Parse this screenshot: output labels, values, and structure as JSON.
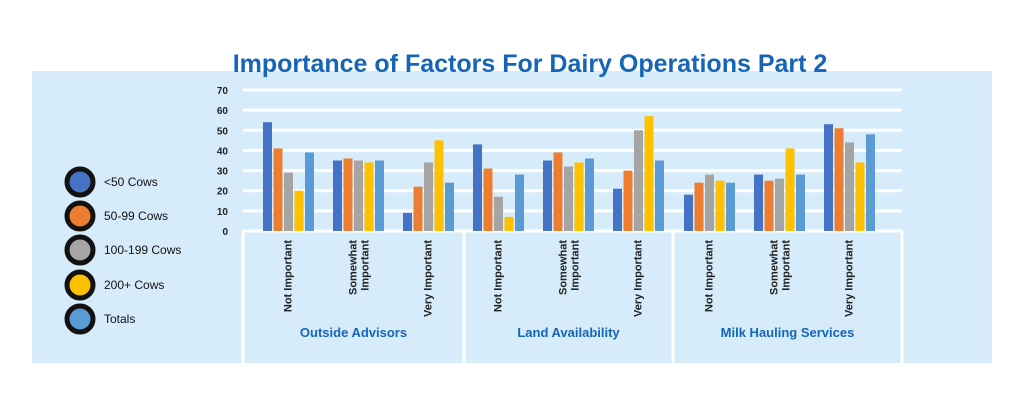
{
  "chart_data": {
    "type": "bar",
    "title": "Importance of Factors For Dairy Operations Part 2",
    "xlabel": "",
    "ylabel": "",
    "ylim": [
      0,
      70
    ],
    "yticks": [
      0,
      10,
      20,
      30,
      40,
      50,
      60,
      70
    ],
    "grid": true,
    "legend_position": "left",
    "groups": [
      {
        "name": "Outside Advisors",
        "categories": [
          "Not Important",
          "Somewhat Important",
          "Very Important"
        ]
      },
      {
        "name": "Land Availability",
        "categories": [
          "Not Important",
          "Somewhat Important",
          "Very Important"
        ]
      },
      {
        "name": "Milk Hauling Services",
        "categories": [
          "Not Important",
          "Somewhat Important",
          "Very Important"
        ]
      }
    ],
    "series": [
      {
        "name": "<50 Cows",
        "color": "#4472c4",
        "values": [
          54,
          35,
          9,
          43,
          35,
          21,
          18,
          28,
          53
        ]
      },
      {
        "name": "50-99 Cows",
        "color": "#ed7d31",
        "values": [
          41,
          36,
          22,
          31,
          39,
          30,
          24,
          25,
          51
        ]
      },
      {
        "name": "100-199 Cows",
        "color": "#a5a5a5",
        "values": [
          29,
          35,
          34,
          17,
          32,
          50,
          28,
          26,
          44
        ]
      },
      {
        "name": "200+ Cows",
        "color": "#ffc000",
        "values": [
          20,
          34,
          45,
          7,
          34,
          57,
          25,
          41,
          34
        ]
      },
      {
        "name": "Totals",
        "color": "#5b9bd5",
        "values": [
          39,
          35,
          24,
          28,
          36,
          35,
          24,
          28,
          48
        ]
      }
    ]
  }
}
